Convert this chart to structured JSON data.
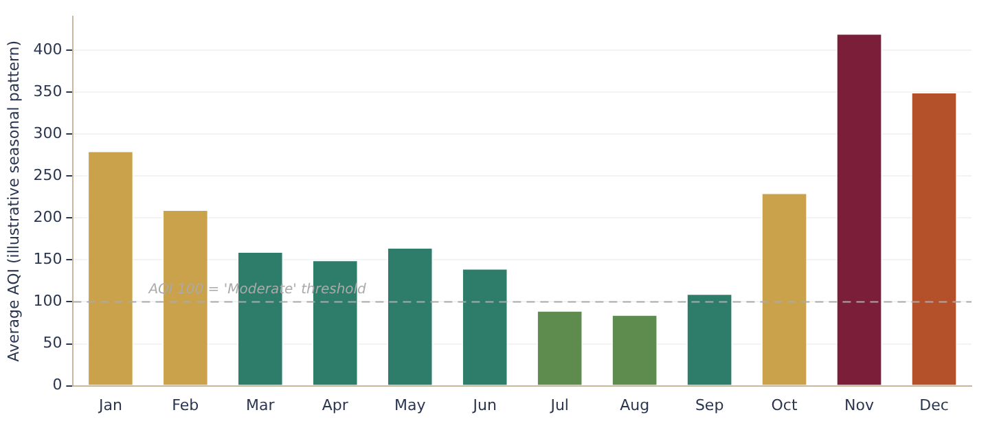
{
  "chart_data": {
    "type": "bar",
    "ylabel": "Average AQI (illustrative seasonal pattern)",
    "categories": [
      "Jan",
      "Feb",
      "Mar",
      "Apr",
      "May",
      "Jun",
      "Jul",
      "Aug",
      "Sep",
      "Oct",
      "Nov",
      "Dec"
    ],
    "values": [
      280,
      210,
      160,
      150,
      165,
      140,
      90,
      85,
      110,
      230,
      420,
      350
    ],
    "colors": [
      "#c9a24b",
      "#c9a24b",
      "#2e7d6b",
      "#2e7d6b",
      "#2e7d6b",
      "#2e7d6b",
      "#5e8c4e",
      "#5e8c4e",
      "#2e7d6b",
      "#c9a24b",
      "#7b1e3a",
      "#b5512a"
    ],
    "ylim": [
      0,
      440
    ],
    "yticks": [
      0,
      50,
      100,
      150,
      200,
      250,
      300,
      350,
      400
    ],
    "grid": "y",
    "legend": false,
    "ref_lines": [
      {
        "axis": "y",
        "value": 100,
        "label": "AQI 100 = 'Moderate' threshold",
        "color": "#aaaaaa",
        "line_style": "dashed"
      }
    ]
  }
}
